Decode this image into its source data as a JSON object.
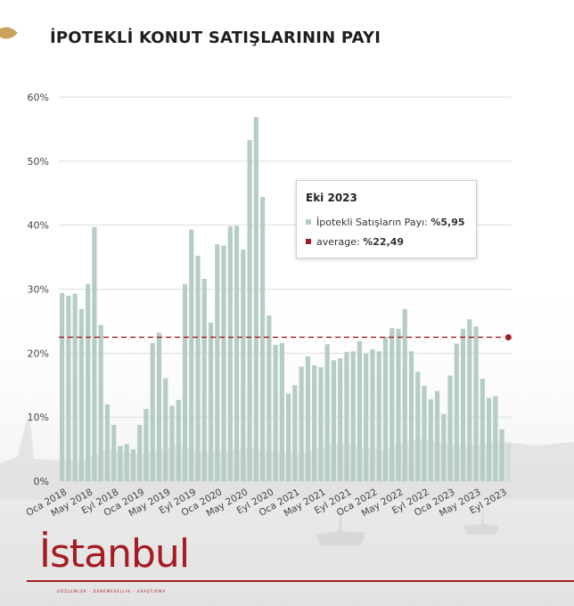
{
  "header": {
    "title": "İPOTEKLİ KONUT SATIŞLARININ PAYI"
  },
  "colors": {
    "bar": "#b6cdc6",
    "bar_highlight": "#cfdeda",
    "average_line": "#a51c22",
    "brand": "#a51c22"
  },
  "tooltip": {
    "title": "Eki 2023",
    "series_label": "İpotekli Satışların Payı:",
    "series_value": "%5,95",
    "average_label": "average:",
    "average_value": "%22,49"
  },
  "brand": {
    "logo_text": "İstanbul",
    "sub_text": "GÖZLEMLER · DENEMESELLİK · ARAŞTIRMA"
  },
  "chart_data": {
    "type": "bar",
    "title": "İPOTEKLİ KONUT SATIŞLARININ PAYI",
    "xlabel": "",
    "ylabel": "",
    "ylim": [
      0,
      60
    ],
    "ytick_labels": [
      "0%",
      "10%",
      "20%",
      "30%",
      "40%",
      "50%",
      "60%"
    ],
    "ytick_values": [
      0,
      10,
      20,
      30,
      40,
      50,
      60
    ],
    "xtick_labels": [
      "Oca 2018",
      "May 2018",
      "Eyl 2018",
      "Oca 2019",
      "May 2019",
      "Eyl 2019",
      "Oca 2020",
      "May 2020",
      "Eyl 2020",
      "Oca 2021",
      "May 2021",
      "Eyl 2021",
      "Oca 2022",
      "May 2022",
      "Eyl 2022",
      "Oca 2023",
      "May 2023",
      "Eyl 2023"
    ],
    "xtick_every": 4,
    "grid": "horizontal",
    "legend": "none",
    "series": [
      {
        "values": [
          29.4,
          29.0,
          29.3,
          26.9,
          30.8,
          39.7,
          24.4,
          12.0,
          8.8,
          5.5,
          5.8,
          5.0,
          8.8,
          11.3,
          21.6,
          23.2,
          16.1,
          11.8,
          12.7,
          30.8,
          39.3,
          35.2,
          31.6,
          24.8,
          37.0,
          36.8,
          39.8,
          39.9,
          36.2,
          53.3,
          56.9,
          44.4,
          25.9,
          21.3,
          21.6,
          13.7,
          15.0,
          17.9,
          19.5,
          18.1,
          17.8,
          21.4,
          18.9,
          19.2,
          20.2,
          20.3,
          21.9,
          19.9,
          20.6,
          20.3,
          22.5,
          23.9,
          23.8,
          26.9,
          20.3,
          17.1,
          14.9,
          12.8,
          14.1,
          10.5,
          16.5,
          21.5,
          23.8,
          25.3,
          24.2,
          16.0,
          13.0,
          13.3,
          8.1,
          5.95
        ]
      }
    ],
    "average": 22.49,
    "highlighted_index": 69,
    "highlighted_label": "Eki 2023"
  }
}
